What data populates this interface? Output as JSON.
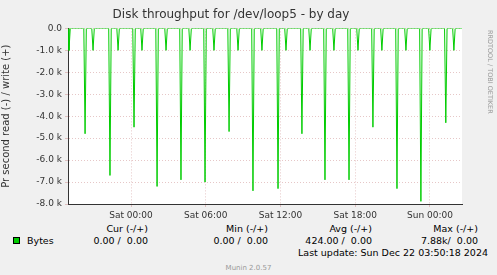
{
  "chart_data": {
    "type": "line",
    "title": "Disk throughput for /dev/loop5 - by day",
    "y_label": "Pr second read (-) / write (+)",
    "x": [
      -5.06,
      -4.98,
      -4.88,
      -3.79,
      -3.69,
      -3.59,
      -3.15,
      -3.05,
      -2.95,
      -1.79,
      -1.69,
      -1.59,
      -1.14,
      -1.04,
      -0.94,
      0.14,
      0.24,
      0.34,
      0.78,
      0.88,
      0.98,
      1.99,
      2.09,
      2.19,
      2.71,
      2.81,
      2.91,
      3.91,
      4.01,
      4.11,
      4.64,
      4.74,
      4.84,
      5.84,
      5.94,
      6.04,
      6.56,
      6.66,
      6.76,
      7.77,
      7.87,
      7.97,
      8.49,
      8.59,
      8.69,
      9.69,
      9.79,
      9.89,
      10.41,
      10.51,
      10.61,
      11.7,
      11.8,
      11.9,
      12.34,
      12.44,
      12.54,
      13.62,
      13.72,
      13.82,
      14.27,
      14.37,
      14.47,
      15.47,
      15.57,
      15.67,
      16.19,
      16.29,
      16.39,
      17.4,
      17.5,
      17.6,
      18.12,
      18.22,
      18.32,
      19.32,
      19.42,
      19.52,
      20.04,
      20.14,
      20.24,
      21.25,
      21.35,
      21.45,
      21.97,
      22.07,
      22.17,
      23.17,
      23.27,
      23.37,
      23.89,
      23.99,
      24.09,
      25.17,
      25.27,
      25.37,
      25.82,
      25.92,
      26.02,
      26.57
    ],
    "series": [
      {
        "name": "Bytes",
        "color": "#00cc00",
        "values": [
          0,
          -1000,
          0,
          0,
          -4800,
          0,
          0,
          -1000,
          0,
          0,
          -6700,
          0,
          0,
          -1000,
          0,
          0,
          -4500,
          0,
          0,
          -1000,
          0,
          0,
          -7200,
          0,
          0,
          -1000,
          0,
          0,
          -6900,
          0,
          0,
          -1000,
          0,
          0,
          -7000,
          0,
          0,
          -1000,
          0,
          0,
          -4700,
          0,
          0,
          -1000,
          0,
          0,
          -7400,
          0,
          0,
          -1000,
          0,
          0,
          -7300,
          0,
          0,
          -1000,
          0,
          0,
          -4800,
          0,
          0,
          -1000,
          0,
          0,
          -6900,
          0,
          0,
          -1000,
          0,
          0,
          -6900,
          0,
          0,
          -1000,
          0,
          0,
          -4500,
          0,
          0,
          -1000,
          0,
          0,
          -7300,
          0,
          0,
          -1000,
          0,
          0,
          -7880,
          0,
          0,
          -1000,
          0,
          0,
          -4300,
          0,
          0,
          -1000,
          0,
          0
        ]
      }
    ],
    "xlim": [
      -5.06,
      26.57
    ],
    "xticks": [
      {
        "value": 0,
        "label": "Sat 00:00"
      },
      {
        "value": 6,
        "label": "Sat 06:00"
      },
      {
        "value": 12,
        "label": "Sat 12:00"
      },
      {
        "value": 18,
        "label": "Sat 18:00"
      },
      {
        "value": 24,
        "label": "Sun 00:00"
      }
    ],
    "ylim": [
      -8000,
      0
    ],
    "yticks": [
      {
        "value": -8000,
        "label": "-8.0 k"
      },
      {
        "value": -7000,
        "label": "-7.0 k"
      },
      {
        "value": -6000,
        "label": "-6.0 k"
      },
      {
        "value": -5000,
        "label": "-5.0 k"
      },
      {
        "value": -4000,
        "label": "-4.0 k"
      },
      {
        "value": -3000,
        "label": "-3.0 k"
      },
      {
        "value": -2000,
        "label": "-2.0 k"
      },
      {
        "value": -1000,
        "label": "-1.0 k"
      },
      {
        "value": 0,
        "label": "0.0"
      }
    ],
    "grid": true,
    "side_text": "RRDTOOL / TOBI OETIKER",
    "legend_table": {
      "headers": [
        "Cur (-/+)",
        "Min (-/+)",
        "Avg (-/+)",
        "Max (-/+)"
      ],
      "rows": [
        {
          "name": "Bytes",
          "cells": [
            "0.00 /  0.00",
            "0.00 /  0.00",
            "424.00 /  0.00",
            "7.88k/  0.00"
          ]
        }
      ]
    },
    "last_update": "Last update: Sun Dec 22 03:50:18 2024",
    "footer": "Munin 2.0.57"
  }
}
